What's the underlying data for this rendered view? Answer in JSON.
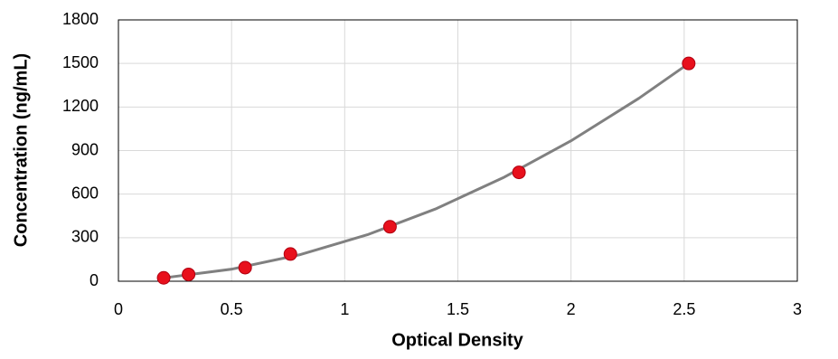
{
  "chart_data": {
    "type": "scatter",
    "x_label": "Optical Density",
    "y_label": "Concentration (ng/mL)",
    "x": [
      0.2,
      0.31,
      0.56,
      0.76,
      1.2,
      1.77,
      2.52
    ],
    "values": [
      23.4,
      46.9,
      93.8,
      187.5,
      375,
      750,
      1500
    ],
    "color": "#e8101c",
    "curve": {
      "x": [
        0.2,
        0.5,
        0.8,
        1.1,
        1.4,
        1.7,
        2.0,
        2.3,
        2.52
      ],
      "values": [
        23,
        83,
        182,
        320,
        497,
        713,
        967,
        1260,
        1500
      ],
      "color": "#808080"
    },
    "xlim": [
      0,
      3
    ],
    "xticks": [
      0,
      0.5,
      1,
      1.5,
      2,
      2.5,
      3
    ],
    "ylim": [
      0,
      1800
    ],
    "yticks": [
      0,
      300,
      600,
      900,
      1200,
      1500,
      1800
    ],
    "grid": true
  }
}
